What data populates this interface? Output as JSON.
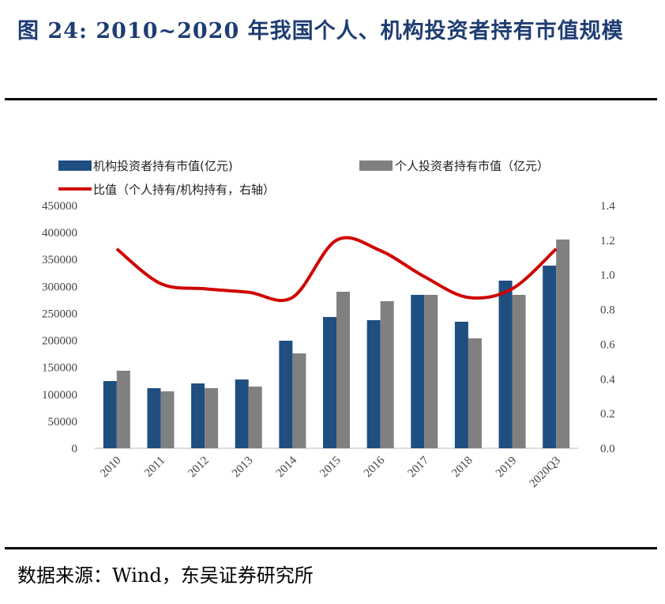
{
  "title": "图 24: 2010~2020 年我国个人、机构投资者持有市值规模",
  "source": "数据来源：Wind，东吴证券研究所",
  "chart_data": {
    "type": "bar+line",
    "categories": [
      "2010",
      "2011",
      "2012",
      "2013",
      "2014",
      "2015",
      "2016",
      "2017",
      "2018",
      "2019",
      "2020Q3"
    ],
    "series": [
      {
        "name": "机构投资者持有市值(亿元)",
        "type": "bar",
        "axis": "left",
        "color": "#1f4e80",
        "values": [
          124600,
          111400,
          120200,
          127500,
          199400,
          243400,
          237500,
          284400,
          234600,
          310800,
          338600
        ]
      },
      {
        "name": "个人投资者持有市值（亿元）",
        "type": "bar",
        "axis": "left",
        "color": "#808080",
        "values": [
          143700,
          105500,
          111400,
          114300,
          175900,
          290200,
          272700,
          284400,
          203800,
          284400,
          387000
        ]
      },
      {
        "name": "比值（个人持有/机构持有，右轴）",
        "type": "line",
        "axis": "right",
        "color": "#d00000",
        "values": [
          1.15,
          0.95,
          0.92,
          0.9,
          0.87,
          1.2,
          1.14,
          0.99,
          0.87,
          0.92,
          1.15
        ]
      }
    ],
    "yleft": {
      "lim": [
        0,
        450000
      ],
      "ticks": [
        "0",
        "50000",
        "100000",
        "150000",
        "200000",
        "250000",
        "300000",
        "350000",
        "400000",
        "450000"
      ]
    },
    "yright": {
      "lim": [
        0,
        1.4
      ],
      "ticks": [
        "0.0",
        "0.2",
        "0.4",
        "0.6",
        "0.8",
        "1.0",
        "1.2",
        "1.4"
      ]
    },
    "legend": "top",
    "grid": false
  }
}
